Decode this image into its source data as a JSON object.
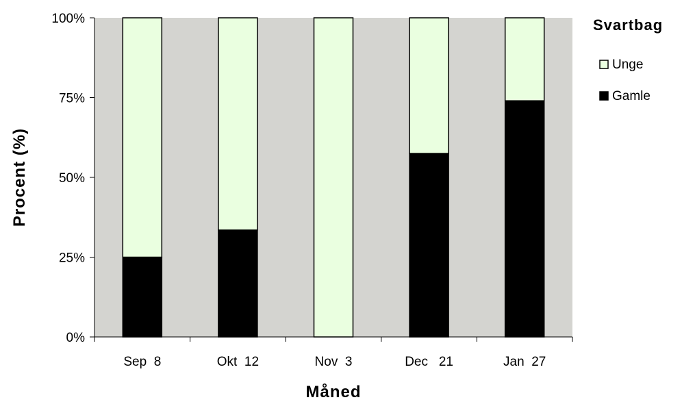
{
  "chart_data": {
    "type": "bar",
    "stacked": true,
    "percent_stacked": true,
    "title": "Svartbag",
    "xlabel": "Måned",
    "ylabel": "Procent (%)",
    "categories": [
      "Sep  8",
      "Okt  12",
      "Nov  3",
      "Dec   21",
      "Jan  27"
    ],
    "ylim": [
      0,
      100
    ],
    "yticks": [
      0,
      25,
      50,
      75,
      100
    ],
    "ytick_labels": [
      "0%",
      "25%",
      "50%",
      "75%",
      "100%"
    ],
    "series": [
      {
        "name": "Gamle",
        "values": [
          25,
          33.5,
          0,
          57.5,
          74
        ],
        "color": "#000000"
      },
      {
        "name": "Unge",
        "values": [
          75,
          66.5,
          100,
          42.5,
          26
        ],
        "color": "#eaffe0"
      }
    ],
    "legend": {
      "position": "right",
      "order": [
        "Unge",
        "Gamle"
      ]
    },
    "plot_background": "#d4d4d0",
    "grid": false
  }
}
